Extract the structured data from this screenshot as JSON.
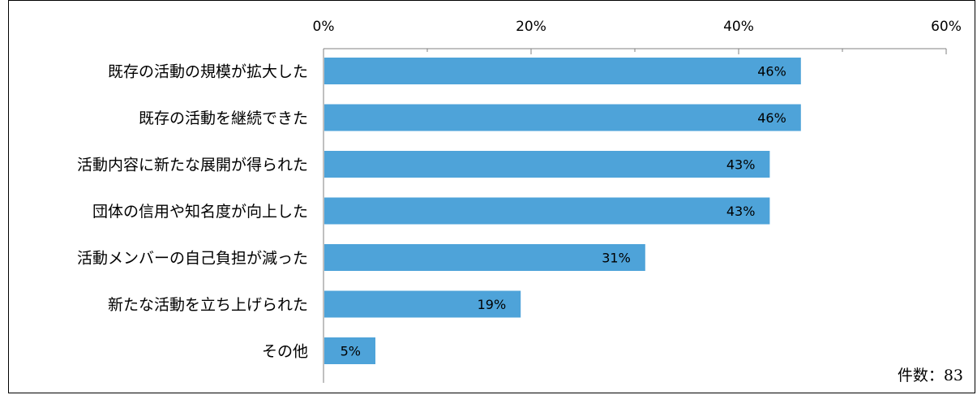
{
  "chart_data": {
    "type": "bar",
    "orientation": "horizontal",
    "categories": [
      "既存の活動の規模が拡大した",
      "既存の活動を継続できた",
      "活動内容に新たな展開が得られた",
      "団体の信用や知名度が向上した",
      "活動メンバーの自己負担が減った",
      "新たな活動を立ち上げられた",
      "その他"
    ],
    "values": [
      46,
      46,
      43,
      43,
      31,
      19,
      5
    ],
    "value_labels": [
      "46%",
      "46%",
      "43%",
      "43%",
      "31%",
      "19%",
      "5%"
    ],
    "xlim": [
      0,
      60
    ],
    "x_ticks": [
      0,
      20,
      40,
      60
    ],
    "x_tick_labels": [
      "0%",
      "20%",
      "40%",
      "60%"
    ],
    "x_minor_ticks": [
      10,
      30,
      50
    ],
    "axis_position": "top",
    "grid": false,
    "bar_color": "#4ea3d9",
    "note": "件数：83"
  }
}
